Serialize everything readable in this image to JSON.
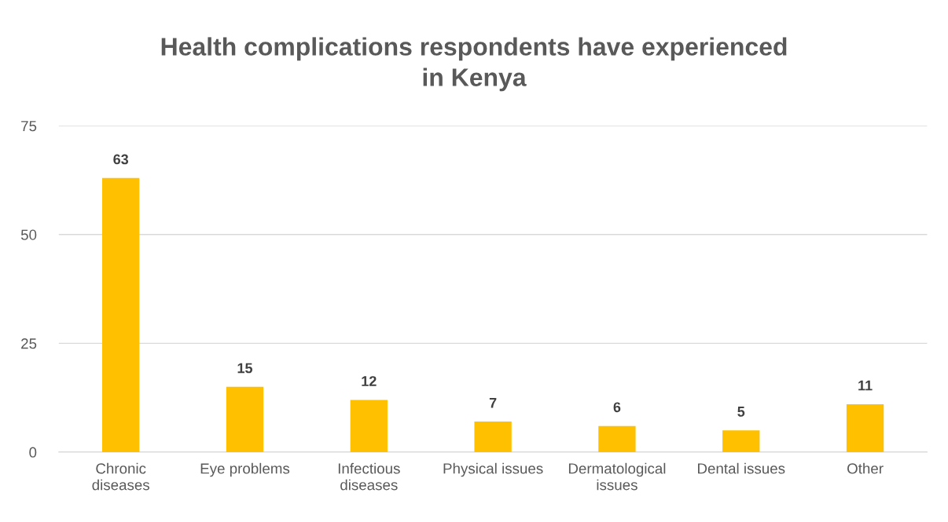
{
  "chart_data": {
    "type": "bar",
    "title": "Health complications respondents have experienced\nin Kenya",
    "categories": [
      "Chronic\ndiseases",
      "Eye problems",
      "Infectious\ndiseases",
      "Physical issues",
      "Dermatological\nissues",
      "Dental issues",
      "Other"
    ],
    "values": [
      63,
      15,
      12,
      7,
      6,
      5,
      11
    ],
    "color": "#ffc000",
    "ylim": [
      0,
      75
    ],
    "yticks": [
      0,
      25,
      50,
      75
    ],
    "grid": "y",
    "data_labels": true,
    "legend": false
  }
}
